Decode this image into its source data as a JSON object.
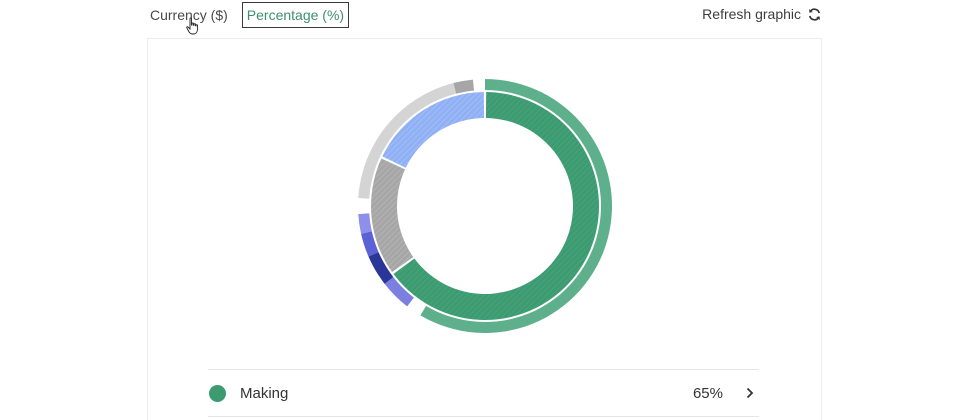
{
  "toggle": {
    "currency_label": "Currency ($)",
    "percentage_label": "Percentage (%)",
    "selected": "percentage"
  },
  "refresh": {
    "label": "Refresh graphic",
    "icon": "refresh-icon"
  },
  "colors": {
    "green": "#3d9b72",
    "green_outer": "#5eb08c",
    "gray_dark": "#a6a6a6",
    "gray_light": "#d4d4d4",
    "blue_light": "#8fb0f5",
    "blue_mid": "#5c62d6",
    "blue_dark": "#1f2f8c"
  },
  "chart_data": {
    "type": "pie",
    "rings": [
      {
        "name": "",
        "segments": [
          {
            "label": "Making",
            "value": 65,
            "color": "#3d9b72"
          },
          {
            "label": "",
            "value": 17,
            "color": "#a6a6a6"
          },
          {
            "label": "",
            "value": 18,
            "color": "#8fb0f5"
          }
        ]
      },
      {
        "name": "",
        "segments": [
          {
            "value": 58.5,
            "color": "#5eb08c"
          },
          {
            "value": 2,
            "color": "#ffffff"
          },
          {
            "value": 4,
            "color": "#7a7fe0"
          },
          {
            "value": 4,
            "color": "#2a3698"
          },
          {
            "value": 3,
            "color": "#5c62d6"
          },
          {
            "value": 2.5,
            "color": "#8c90ea"
          },
          {
            "value": 2,
            "color": "#ffffff"
          },
          {
            "value": 20,
            "color": "#d4d4d4"
          },
          {
            "value": 2.5,
            "color": "#a6a6a6"
          },
          {
            "value": 1.5,
            "color": "#ffffff"
          }
        ]
      }
    ]
  },
  "legend": [
    {
      "label": "Making",
      "value": "65%",
      "color": "#3d9b72"
    }
  ]
}
